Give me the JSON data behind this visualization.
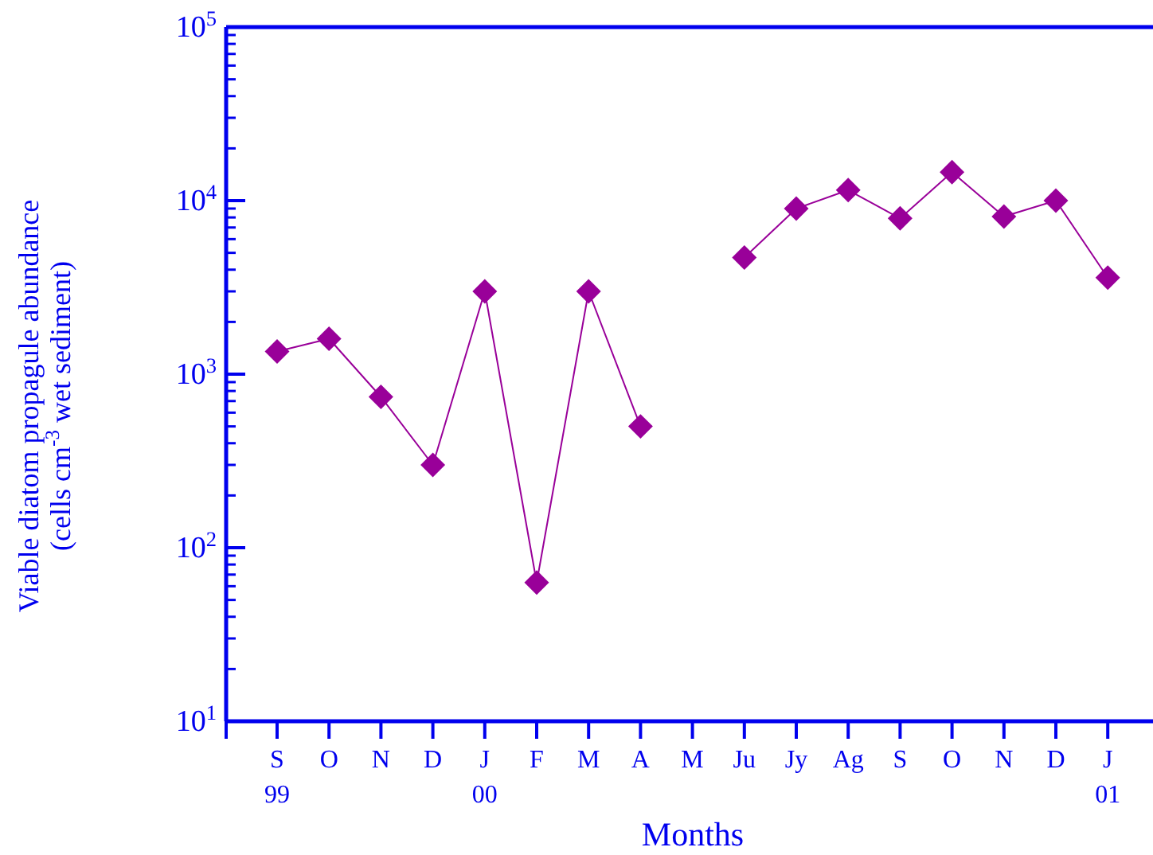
{
  "chart_data": {
    "type": "line",
    "xlabel": "Months",
    "ylabel": "Viable diatom propagule abundance\n(cells cm$^{-3}$ wet sediment)",
    "categories": [
      "S\n99",
      "O",
      "N",
      "D",
      "J\n00",
      "F",
      "M",
      "A",
      "M",
      "Ju",
      "Jy",
      "Ag",
      "S",
      "O",
      "N",
      "D",
      "J\n01"
    ],
    "series": [
      {
        "color": "#990099",
        "values": [
          1350,
          1600,
          740,
          300,
          3000,
          63,
          3000,
          500,
          null,
          4700,
          9000,
          11500,
          7900,
          14600,
          8100,
          10000,
          3600
        ]
      }
    ],
    "log": true,
    "ylim": [
      10,
      100000
    ],
    "yticks": [
      {
        "value": 10,
        "label": "10$^{1}$"
      },
      {
        "value": 100,
        "label": "10$^{2}$"
      },
      {
        "value": 1000,
        "label": "10$^{3}$"
      },
      {
        "value": 10000,
        "label": "10$^{4}$"
      },
      {
        "value": 100000,
        "label": "10$^{5}$"
      }
    ],
    "marker": "diamond",
    "line_style": "solid",
    "grid": false
  }
}
